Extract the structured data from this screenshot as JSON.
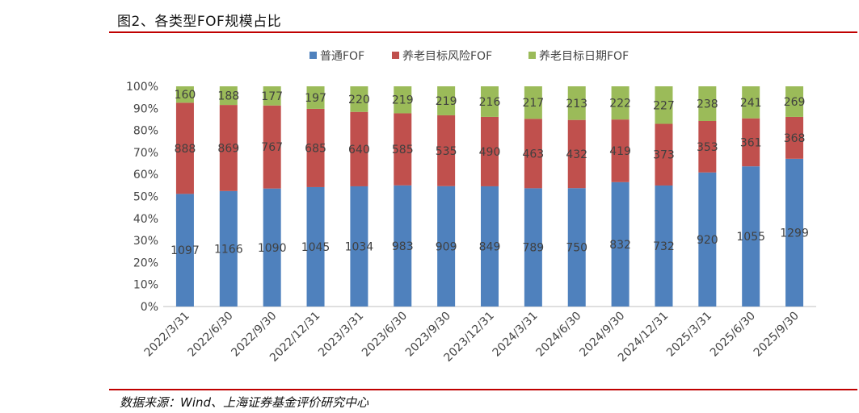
{
  "page": {
    "title": "图2、各类型FOF规模占比",
    "source": "数据来源：Wind、上海证券基金评价研究中心"
  },
  "chart_data": {
    "type": "bar",
    "stacked": true,
    "normalized": true,
    "title": "",
    "xlabel": "",
    "ylabel": "",
    "ylim": [
      0,
      100
    ],
    "yticks": [
      "0%",
      "10%",
      "20%",
      "30%",
      "40%",
      "50%",
      "60%",
      "70%",
      "80%",
      "90%",
      "100%"
    ],
    "legend_position": "top-center",
    "categories": [
      "2022/3/31",
      "2022/6/30",
      "2022/9/30",
      "2022/12/31",
      "2023/3/31",
      "2023/6/30",
      "2023/9/30",
      "2023/12/31",
      "2024/3/31",
      "2024/6/30",
      "2024/9/30",
      "2024/12/31",
      "2025/3/31",
      "2025/6/30",
      "2025/9/30"
    ],
    "series": [
      {
        "name": "普通FOF",
        "color": "#4f81bd",
        "values": [
          1097,
          1166,
          1090,
          1045,
          1034,
          983,
          909,
          849,
          789,
          750,
          832,
          732,
          920,
          1055,
          1299
        ]
      },
      {
        "name": "养老目标风险FOF",
        "color": "#c0504d",
        "values": [
          888,
          869,
          767,
          685,
          640,
          585,
          535,
          490,
          463,
          432,
          419,
          373,
          353,
          361,
          368
        ]
      },
      {
        "name": "养老目标日期FOF",
        "color": "#9bbb59",
        "values": [
          160,
          188,
          177,
          197,
          220,
          219,
          219,
          216,
          217,
          213,
          222,
          227,
          238,
          241,
          269
        ]
      }
    ]
  }
}
